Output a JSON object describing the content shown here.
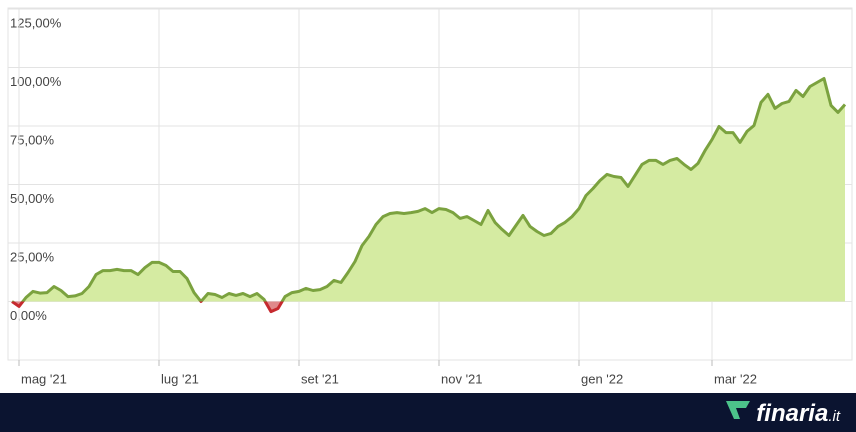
{
  "chart_data": {
    "type": "line",
    "categories": [
      null,
      "mag '21",
      null,
      null,
      null,
      null,
      null,
      null,
      null,
      null,
      null,
      null,
      null,
      null,
      null,
      null,
      null,
      null,
      null,
      null,
      null,
      "lug '21",
      null,
      null,
      null,
      null,
      null,
      null,
      null,
      null,
      null,
      null,
      null,
      null,
      null,
      null,
      null,
      null,
      null,
      null,
      null,
      "set '21",
      null,
      null,
      null,
      null,
      null,
      null,
      null,
      null,
      null,
      null,
      null,
      null,
      null,
      null,
      null,
      null,
      null,
      null,
      null,
      "nov '21",
      null,
      null,
      null,
      null,
      null,
      null,
      null,
      null,
      null,
      null,
      null,
      null,
      null,
      null,
      null,
      null,
      null,
      null,
      null,
      "gen '22",
      null,
      null,
      null,
      null,
      null,
      null,
      null,
      null,
      null,
      null,
      null,
      null,
      null,
      null,
      null,
      null,
      null,
      null,
      "mar '22",
      null,
      null,
      null,
      null,
      null,
      null,
      null,
      null,
      null,
      null,
      null,
      null,
      null,
      null,
      null,
      null,
      null,
      null,
      null
    ],
    "values": [
      0,
      -2.1,
      1.7,
      4.3,
      3.6,
      3.8,
      6.4,
      4.7,
      2.1,
      2.4,
      3.4,
      6.4,
      11.5,
      13.2,
      13.2,
      13.7,
      13.2,
      13.2,
      11.5,
      14.5,
      16.7,
      16.7,
      15.4,
      12.8,
      12.8,
      9.8,
      3.8,
      0,
      3.4,
      3.0,
      1.7,
      3.4,
      2.6,
      3.4,
      2.1,
      3.4,
      0.9,
      -4.3,
      -3.0,
      2.1,
      3.8,
      4.3,
      5.6,
      4.7,
      5.1,
      6.4,
      9.0,
      8.1,
      12.4,
      17.1,
      23.9,
      27.8,
      32.9,
      36.3,
      37.6,
      38.0,
      37.6,
      38.0,
      38.5,
      39.7,
      38.0,
      39.7,
      39.3,
      38.0,
      35.5,
      36.3,
      34.6,
      32.9,
      38.9,
      33.8,
      30.8,
      28.2,
      32.5,
      36.8,
      32.1,
      29.9,
      28.2,
      29.1,
      32.1,
      33.8,
      36.3,
      39.7,
      45.3,
      48.3,
      51.7,
      54.3,
      53.4,
      53.0,
      49.2,
      53.9,
      58.6,
      60.3,
      60.3,
      58.6,
      60.3,
      61.1,
      58.6,
      56.4,
      59.0,
      64.5,
      69.2,
      74.8,
      72.2,
      72.2,
      68.0,
      72.7,
      75.2,
      85.1,
      88.5,
      82.5,
      84.6,
      85.5,
      90.2,
      87.6,
      91.9,
      93.6,
      95.3,
      83.8,
      80.8,
      84.2
    ],
    "color": "#7ba23f",
    "fill_color": "#d5eba2",
    "negative_color": "#c62a2f",
    "negative_fill_color": "#e0898b",
    "ylim": [
      -25,
      125
    ],
    "yticks": [
      {
        "value": 0,
        "label": "0,00%"
      },
      {
        "value": 25,
        "label": "25,00%"
      },
      {
        "value": 50,
        "label": "50,00%"
      },
      {
        "value": 75,
        "label": "75,00%"
      },
      {
        "value": 100,
        "label": "100,00%"
      },
      {
        "value": 125,
        "label": "125,00%"
      }
    ],
    "grid": true
  },
  "footer": {
    "brand": "finaria",
    "brand_suffix": ".it"
  }
}
